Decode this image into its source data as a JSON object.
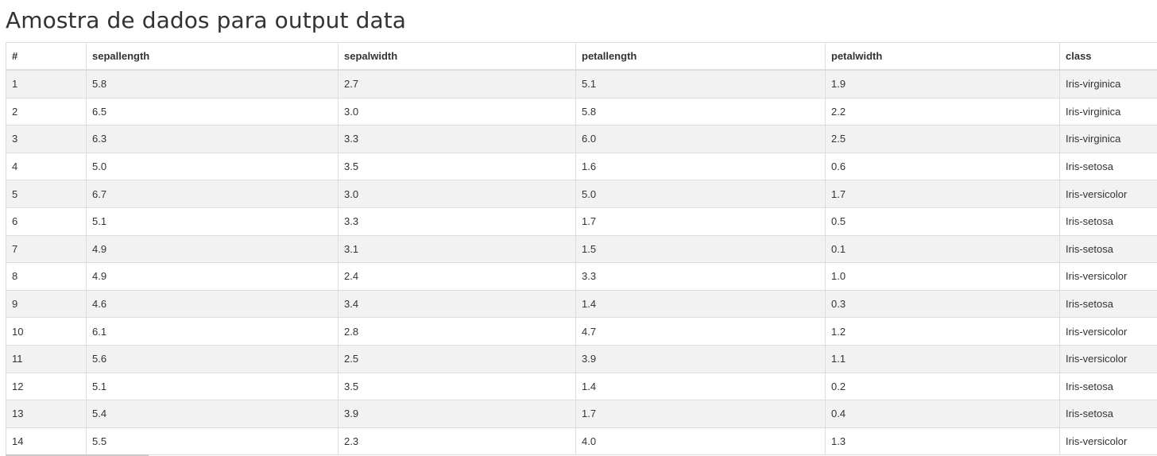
{
  "page": {
    "title": "Amostra de dados para output data"
  },
  "table": {
    "columns": [
      "#",
      "sepallength",
      "sepalwidth",
      "petallength",
      "petalwidth",
      "class"
    ],
    "rows": [
      [
        "1",
        "5.8",
        "2.7",
        "5.1",
        "1.9",
        "Iris-virginica"
      ],
      [
        "2",
        "6.5",
        "3.0",
        "5.8",
        "2.2",
        "Iris-virginica"
      ],
      [
        "3",
        "6.3",
        "3.3",
        "6.0",
        "2.5",
        "Iris-virginica"
      ],
      [
        "4",
        "5.0",
        "3.5",
        "1.6",
        "0.6",
        "Iris-setosa"
      ],
      [
        "5",
        "6.7",
        "3.0",
        "5.0",
        "1.7",
        "Iris-versicolor"
      ],
      [
        "6",
        "5.1",
        "3.3",
        "1.7",
        "0.5",
        "Iris-setosa"
      ],
      [
        "7",
        "4.9",
        "3.1",
        "1.5",
        "0.1",
        "Iris-setosa"
      ],
      [
        "8",
        "4.9",
        "2.4",
        "3.3",
        "1.0",
        "Iris-versicolor"
      ],
      [
        "9",
        "4.6",
        "3.4",
        "1.4",
        "0.3",
        "Iris-setosa"
      ],
      [
        "10",
        "6.1",
        "2.8",
        "4.7",
        "1.2",
        "Iris-versicolor"
      ],
      [
        "11",
        "5.6",
        "2.5",
        "3.9",
        "1.1",
        "Iris-versicolor"
      ],
      [
        "12",
        "5.1",
        "3.5",
        "1.4",
        "0.2",
        "Iris-setosa"
      ],
      [
        "13",
        "5.4",
        "3.9",
        "1.7",
        "0.4",
        "Iris-setosa"
      ],
      [
        "14",
        "5.5",
        "2.3",
        "4.0",
        "1.3",
        "Iris-versicolor"
      ]
    ]
  },
  "colors": {
    "text": "#333333",
    "border": "#dddddd",
    "row_stripe": "#f2f2f2",
    "background": "#ffffff"
  }
}
